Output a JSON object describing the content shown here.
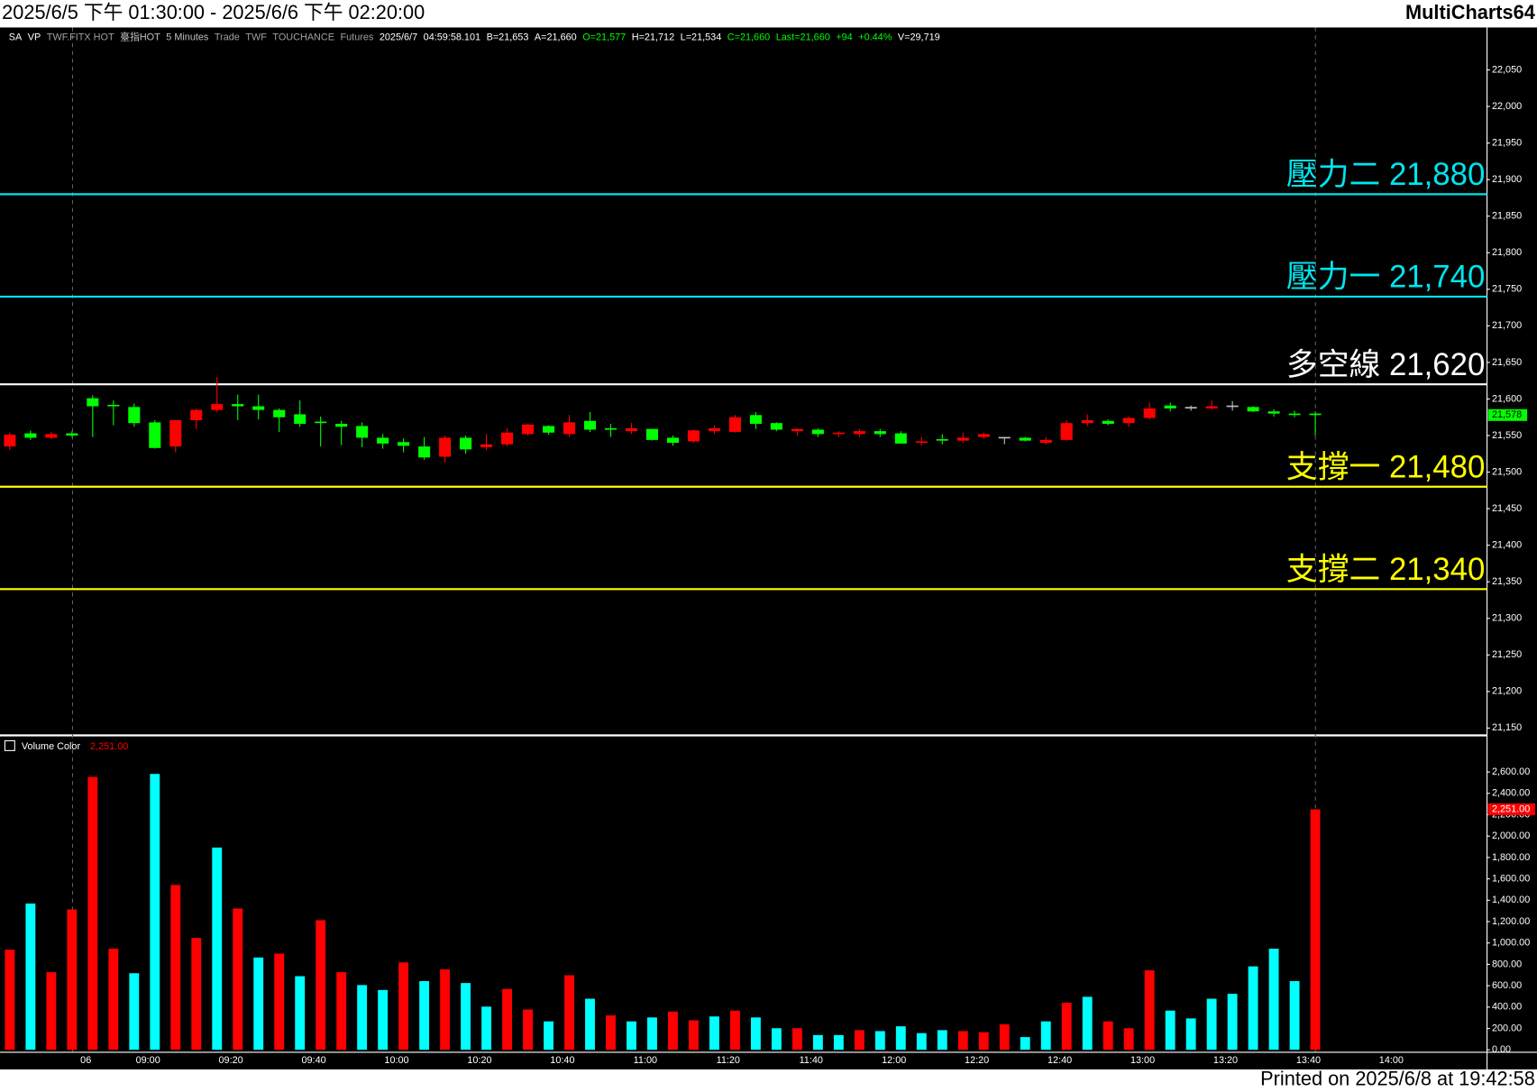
{
  "window": {
    "title": "2025/6/5 下午 01:30:00 - 2025/6/6 下午 02:20:00",
    "app": "MultiCharts64",
    "footer": "Printed on 2025/6/8 at 19:42:58",
    "status_bar": [
      {
        "text": "SA",
        "color": "#ffffff"
      },
      {
        "text": "VP",
        "color": "#ffffff"
      },
      {
        "text": "TWF.FITX HOT",
        "color": "#a0a0a0"
      },
      {
        "text": "臺指HOT",
        "color": "#c0c0c0"
      },
      {
        "text": "5 Minutes",
        "color": "#c0c0c0"
      },
      {
        "text": "Trade",
        "color": "#a0a0a0"
      },
      {
        "text": "TWF",
        "color": "#a0a0a0"
      },
      {
        "text": "TOUCHANCE",
        "color": "#a0a0a0"
      },
      {
        "text": "Futures",
        "color": "#a0a0a0"
      },
      {
        "text": "2025/6/7",
        "color": "#ffffff"
      },
      {
        "text": "04:59:58.101",
        "color": "#ffffff"
      },
      {
        "text": "B=21,653",
        "color": "#ffffff"
      },
      {
        "text": "A=21,660",
        "color": "#ffffff"
      },
      {
        "text": "O=21,577",
        "color": "#00ff00"
      },
      {
        "text": "H=21,712",
        "color": "#ffffff"
      },
      {
        "text": "L=21,534",
        "color": "#ffffff"
      },
      {
        "text": "C=21,660",
        "color": "#00ff00"
      },
      {
        "text": "Last=21,660",
        "color": "#00ff00"
      },
      {
        "text": "+94",
        "color": "#00ff00"
      },
      {
        "text": "+0.44%",
        "color": "#00ff00"
      },
      {
        "text": "V=29,719",
        "color": "#ffffff"
      }
    ]
  },
  "chart_data": [
    {
      "type": "candlestick",
      "up_color": "#ff0000",
      "down_color": "#00ff00",
      "flat_color": "#c0c0c0",
      "open": [
        21535,
        21553,
        21547,
        21553,
        21601,
        21592,
        21589,
        21568,
        21535,
        21571,
        21585,
        21593,
        21590,
        21585,
        21579,
        21569,
        21566,
        21563,
        21547,
        21541,
        21535,
        21521,
        21547,
        21534,
        21538,
        21552,
        21563,
        21552,
        21570,
        21560,
        21556,
        21559,
        21547,
        21542,
        21556,
        21555,
        21578,
        21567,
        21556,
        21558,
        21553,
        21552,
        21556,
        21553,
        21541,
        21545,
        21543,
        21548,
        21548,
        21547,
        21540,
        21544,
        21567,
        21570,
        21567,
        21574,
        21591,
        21589,
        21587,
        21591,
        21589,
        21583,
        21580,
        21580,
        null,
        null,
        null,
        null
      ],
      "high": [
        21554,
        21557,
        21555,
        21556,
        21605,
        21598,
        21594,
        21571,
        21571,
        21587,
        21630,
        21606,
        21606,
        21587,
        21598,
        21576,
        21570,
        21568,
        21552,
        21546,
        21548,
        21550,
        21550,
        21552,
        21560,
        21566,
        21564,
        21578,
        21582,
        21566,
        21567,
        21559,
        21550,
        21558,
        21564,
        21578,
        21582,
        21568,
        21560,
        21560,
        21556,
        21559,
        21559,
        21556,
        21548,
        21552,
        21554,
        21554,
        21548,
        21548,
        21548,
        21571,
        21579,
        21572,
        21576,
        21595,
        21595,
        21591,
        21598,
        21597,
        21590,
        21586,
        21584,
        21583,
        null,
        null,
        null,
        null
      ],
      "low": [
        21530,
        21544,
        21545,
        21548,
        21548,
        21564,
        21562,
        21532,
        21527,
        21559,
        21582,
        21571,
        21572,
        21555,
        21562,
        21535,
        21537,
        21534,
        21532,
        21527,
        21517,
        21513,
        21525,
        21530,
        21535,
        21550,
        21551,
        21548,
        21555,
        21548,
        21552,
        21543,
        21536,
        21540,
        21552,
        21554,
        21559,
        21556,
        21550,
        21548,
        21548,
        21548,
        21548,
        21539,
        21536,
        21538,
        21540,
        21546,
        21538,
        21542,
        21538,
        21543,
        21563,
        21564,
        21562,
        21572,
        21583,
        21584,
        21585,
        21584,
        21582,
        21576,
        21575,
        21550,
        null,
        null,
        null,
        null
      ],
      "close": [
        21551,
        21547,
        21552,
        21550,
        21590,
        21590,
        21567,
        21533,
        21571,
        21585,
        21593,
        21590,
        21585,
        21575,
        21566,
        21567,
        21562,
        21547,
        21539,
        21536,
        21520,
        21547,
        21531,
        21538,
        21554,
        21565,
        21554,
        21568,
        21558,
        21558,
        21560,
        21544,
        21540,
        21557,
        21560,
        21575,
        21566,
        21558,
        21559,
        21552,
        21554,
        21556,
        21552,
        21539,
        21542,
        21544,
        21547,
        21552,
        21548,
        21543,
        21544,
        21567,
        21571,
        21566,
        21574,
        21587,
        21587,
        21589,
        21590,
        21591,
        21583,
        21580,
        21578,
        21578,
        null,
        null,
        null,
        null
      ],
      "last_label": {
        "value": 21578,
        "label": "21,578",
        "color": "#00ff00"
      },
      "levels": [
        {
          "text": "壓力二 21,880",
          "value": 21880,
          "color": "#00e5ee"
        },
        {
          "text": "壓力一 21,740",
          "value": 21740,
          "color": "#00e5ee"
        },
        {
          "text": "多空線 21,620",
          "value": 21620,
          "color": "#ffffff"
        },
        {
          "text": "支撐一 21,480",
          "value": 21480,
          "color": "#ffff00"
        },
        {
          "text": "支撐二 21,340",
          "value": 21340,
          "color": "#ffff00"
        }
      ],
      "ylim": [
        21142,
        22108
      ],
      "yticks": [
        {
          "value": 21150,
          "label": "21,150"
        },
        {
          "value": 21200,
          "label": "21,200"
        },
        {
          "value": 21250,
          "label": "21,250"
        },
        {
          "value": 21300,
          "label": "21,300"
        },
        {
          "value": 21350,
          "label": "21,350"
        },
        {
          "value": 21400,
          "label": "21,400"
        },
        {
          "value": 21450,
          "label": "21,450"
        },
        {
          "value": 21500,
          "label": "21,500"
        },
        {
          "value": 21550,
          "label": "21,550"
        },
        {
          "value": 21600,
          "label": "21,600"
        },
        {
          "value": 21650,
          "label": "21,650"
        },
        {
          "value": 21700,
          "label": "21,700"
        },
        {
          "value": 21750,
          "label": "21,750"
        },
        {
          "value": 21800,
          "label": "21,800"
        },
        {
          "value": 21850,
          "label": "21,850"
        },
        {
          "value": 21900,
          "label": "21,900"
        },
        {
          "value": 21950,
          "label": "21,950"
        },
        {
          "value": 22000,
          "label": "22,000"
        },
        {
          "value": 22050,
          "label": "22,050"
        }
      ]
    },
    {
      "type": "bar",
      "title": "Volume Color",
      "title_value": {
        "value": 2251,
        "label": "2,251.00"
      },
      "categories": [
        null,
        null,
        null,
        null,
        "06",
        null,
        null,
        "09:00",
        null,
        null,
        null,
        "09:20",
        null,
        null,
        null,
        "09:40",
        null,
        null,
        null,
        "10:00",
        null,
        null,
        null,
        "10:20",
        null,
        null,
        null,
        "10:40",
        null,
        null,
        null,
        "11:00",
        null,
        null,
        null,
        "11:20",
        null,
        null,
        null,
        "11:40",
        null,
        null,
        null,
        "12:00",
        null,
        null,
        null,
        "12:20",
        null,
        null,
        null,
        "12:40",
        null,
        null,
        null,
        "13:00",
        null,
        null,
        null,
        "13:20",
        null,
        null,
        null,
        "13:40",
        null,
        null,
        null,
        "14:00"
      ],
      "values": [
        937,
        1369,
        726,
        1314,
        2554,
        946,
        717,
        2582,
        1543,
        1047,
        1893,
        1323,
        864,
        900,
        689,
        1213,
        726,
        606,
        560,
        818,
        643,
        753,
        625,
        404,
        570,
        377,
        266,
        698,
        478,
        322,
        266,
        303,
        358,
        276,
        312,
        367,
        303,
        202,
        202,
        138,
        138,
        184,
        175,
        220,
        156,
        184,
        175,
        165,
        239,
        119,
        266,
        441,
        496,
        266,
        202,
        744,
        367,
        294,
        478,
        524,
        781,
        946,
        643,
        2251,
        null,
        null,
        null,
        null
      ],
      "colors": [
        "#ff0000",
        "#00ffff",
        "#ff0000",
        "#ff0000",
        "#ff0000",
        "#ff0000",
        "#00ffff",
        "#00ffff",
        "#ff0000",
        "#ff0000",
        "#00ffff",
        "#ff0000",
        "#00ffff",
        "#ff0000",
        "#00ffff",
        "#ff0000",
        "#ff0000",
        "#00ffff",
        "#00ffff",
        "#ff0000",
        "#00ffff",
        "#ff0000",
        "#00ffff",
        "#00ffff",
        "#ff0000",
        "#ff0000",
        "#00ffff",
        "#ff0000",
        "#00ffff",
        "#ff0000",
        "#00ffff",
        "#00ffff",
        "#ff0000",
        "#ff0000",
        "#00ffff",
        "#ff0000",
        "#00ffff",
        "#00ffff",
        "#ff0000",
        "#00ffff",
        "#00ffff",
        "#ff0000",
        "#00ffff",
        "#00ffff",
        "#00ffff",
        "#00ffff",
        "#ff0000",
        "#ff0000",
        "#ff0000",
        "#00ffff",
        "#00ffff",
        "#ff0000",
        "#00ffff",
        "#ff0000",
        "#ff0000",
        "#ff0000",
        "#00ffff",
        "#00ffff",
        "#00ffff",
        "#00ffff",
        "#00ffff",
        "#00ffff",
        "#00ffff",
        "#ff0000",
        null,
        null,
        null,
        null
      ],
      "last_label": {
        "value": 2251,
        "label": "2,251.00",
        "color": "#ff0000"
      },
      "ylim": [
        0,
        2920
      ],
      "yticks": [
        {
          "value": 0,
          "label": "0.00"
        },
        {
          "value": 200,
          "label": "200.00"
        },
        {
          "value": 400,
          "label": "400.00"
        },
        {
          "value": 600,
          "label": "600.00"
        },
        {
          "value": 800,
          "label": "800.00"
        },
        {
          "value": 1000,
          "label": "1,000.00"
        },
        {
          "value": 1200,
          "label": "1,200.00"
        },
        {
          "value": 1400,
          "label": "1,400.00"
        },
        {
          "value": 1600,
          "label": "1,600.00"
        },
        {
          "value": 1800,
          "label": "1,800.00"
        },
        {
          "value": 2000,
          "label": "2,000.00"
        },
        {
          "value": 2200,
          "label": "2,200.00"
        },
        {
          "value": 2400,
          "label": "2,400.00"
        },
        {
          "value": 2600,
          "label": "2,600.00"
        }
      ]
    }
  ]
}
